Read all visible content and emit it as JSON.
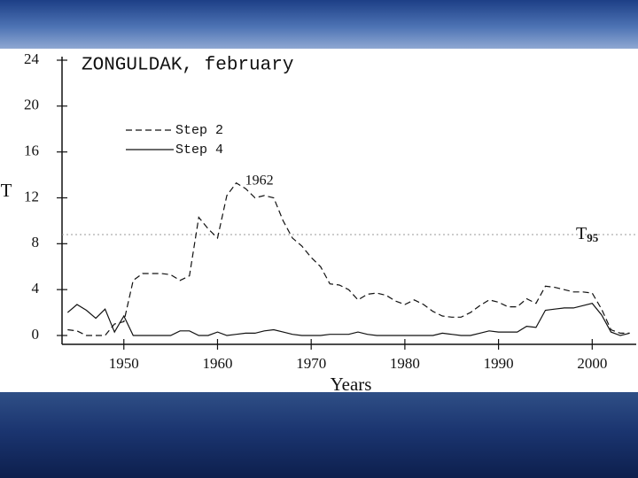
{
  "chart_data": {
    "type": "line",
    "title": "ZONGULDAK, february",
    "x_label": "Years",
    "y_label": "T",
    "x": [
      1944,
      1945,
      1946,
      1947,
      1948,
      1949,
      1950,
      1951,
      1952,
      1953,
      1954,
      1955,
      1956,
      1957,
      1958,
      1959,
      1960,
      1961,
      1962,
      1963,
      1964,
      1965,
      1966,
      1967,
      1968,
      1969,
      1970,
      1971,
      1972,
      1973,
      1974,
      1975,
      1976,
      1977,
      1978,
      1979,
      1980,
      1981,
      1982,
      1983,
      1984,
      1985,
      1986,
      1987,
      1988,
      1989,
      1990,
      1991,
      1992,
      1993,
      1994,
      1995,
      1996,
      1997,
      1998,
      1999,
      2000,
      2001,
      2002,
      2003,
      2004
    ],
    "series": [
      {
        "name": "Step 2",
        "color": "#111111",
        "dash": "dashed",
        "values": [
          0.5,
          0.4,
          0,
          0,
          0,
          1.0,
          1.2,
          4.8,
          5.4,
          5.4,
          5.4,
          5.3,
          4.8,
          5.2,
          10.3,
          9.3,
          8.5,
          12.2,
          13.3,
          12.8,
          12.0,
          12.2,
          12.0,
          10.0,
          8.5,
          7.8,
          6.8,
          6.0,
          4.5,
          4.4,
          4.0,
          3.1,
          3.6,
          3.7,
          3.5,
          3.0,
          2.7,
          3.1,
          2.7,
          2.1,
          1.7,
          1.6,
          1.6,
          2.0,
          2.6,
          3.1,
          2.9,
          2.5,
          2.5,
          3.2,
          2.8,
          4.3,
          4.2,
          4.0,
          3.8,
          3.8,
          3.7,
          2.3,
          0.5,
          0.2,
          0.2
        ]
      },
      {
        "name": "Step 4",
        "color": "#111111",
        "dash": "solid",
        "values": [
          2.0,
          2.7,
          2.2,
          1.5,
          2.3,
          0.3,
          1.7,
          0,
          0,
          0,
          0,
          0,
          0.4,
          0.4,
          0,
          0,
          0.3,
          0,
          0.1,
          0.2,
          0.2,
          0.4,
          0.5,
          0.3,
          0.1,
          0,
          0,
          0,
          0.1,
          0.1,
          0.1,
          0.3,
          0.1,
          0,
          0,
          0,
          0,
          0,
          0,
          0,
          0.2,
          0.1,
          0,
          0,
          0.2,
          0.4,
          0.3,
          0.3,
          0.3,
          0.8,
          0.7,
          2.2,
          2.3,
          2.4,
          2.4,
          2.6,
          2.8,
          1.8,
          0.3,
          0,
          0.2
        ]
      }
    ],
    "annotations": [
      {
        "text": "1962",
        "x": 1962,
        "y": 13.3
      }
    ],
    "threshold": {
      "value": 8.8,
      "label": "T",
      "label_sub": "95",
      "color": "#999999"
    },
    "xlim": [
      1943.4,
      2004.7
    ],
    "xticks": [
      1950,
      1960,
      1970,
      1980,
      1990,
      2000
    ],
    "ylim": [
      0,
      24
    ],
    "yticks": [
      0,
      4,
      8,
      12,
      16,
      20,
      24
    ],
    "legend": "upper-left"
  }
}
